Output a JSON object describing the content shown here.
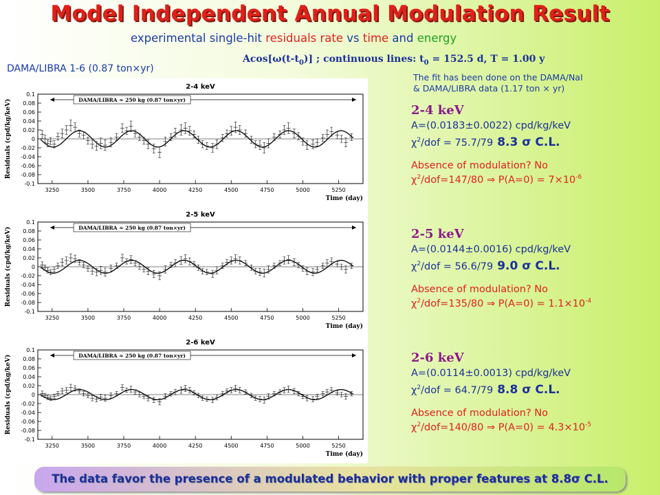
{
  "header": {
    "title": "Model Independent Annual Modulation Result",
    "subtitle_a": "experimental single-hit ",
    "subtitle_b": "residuals rate",
    "subtitle_c": " vs ",
    "subtitle_d": "time",
    "subtitle_e": " and ",
    "subtitle_f": "energy",
    "formula_a": "Acos[ω(t-t",
    "formula_sub1": "0",
    "formula_b": ")] ; continuous lines: t",
    "formula_sub2": "0",
    "formula_c": " = 152.5 d,  T = 1.00 y",
    "dataset_label": "DAMA/LIBRA 1-6 (0.87 ton×yr)",
    "fit_note_line1": "The fit has been done on the DAMA/NaI",
    "fit_note_line2": "& DAMA/LIBRA data (1.17 ton × yr)"
  },
  "results": [
    {
      "range": "2-4 keV",
      "amplitude": "A=(0.0183±0.0022) cpd/kg/keV",
      "chi_pre": "χ",
      "chi_sup": "2",
      "chi_post": "/dof = 75.7/79",
      "cl": "8.3 σ C.L.",
      "absence": "Absence of modulation? No",
      "chi0_pre": "χ",
      "chi0_sup1": "2",
      "chi0_post": "/dof=147/80 ⇒ P(A=0) = 7×10",
      "chi0_exp": "-6"
    },
    {
      "range": "2-5 keV",
      "amplitude": "A=(0.0144±0.0016) cpd/kg/keV",
      "chi_pre": "χ",
      "chi_sup": "2",
      "chi_post": "/dof = 56.6/79",
      "cl": "9.0 σ C.L.",
      "absence": "Absence of modulation? No",
      "chi0_pre": "χ",
      "chi0_sup1": "2",
      "chi0_post": "/dof=135/80 ⇒ P(A=0) = 1.1×10",
      "chi0_exp": "-4"
    },
    {
      "range": "2-6 keV",
      "amplitude": "A=(0.0114±0.0013) cpd/kg/keV",
      "chi_pre": "χ",
      "chi_sup": "2",
      "chi_post": "/dof = 64.7/79",
      "cl": "8.8 σ C.L.",
      "absence": "Absence of modulation? No",
      "chi0_pre": "χ",
      "chi0_sup1": "2",
      "chi0_post": "/dof=140/80 ⇒ P(A=0) = 4.3×10",
      "chi0_exp": "-5"
    }
  ],
  "banner": {
    "text": "The data favor the presence of a modulated behavior with proper features at 8.8σ C.L."
  },
  "chart_data": [
    {
      "type": "scatter",
      "title": "2-4 keV",
      "annotation": "DAMA/LIBRA ≈ 250 kg   (0.87 ton×yr)",
      "xlabel": "Time (day)",
      "ylabel": "Residuals (cpd/kg/keV)",
      "xlim": [
        3150,
        5420
      ],
      "ylim": [
        -0.1,
        0.1
      ],
      "xticks": [
        3250,
        3500,
        3750,
        4000,
        4250,
        4500,
        4750,
        5000,
        5250
      ],
      "yticks": [
        -0.1,
        -0.08,
        -0.06,
        -0.04,
        -0.02,
        0,
        0.02,
        0.04,
        0.06,
        0.08,
        0.1
      ],
      "grid": false,
      "fit": {
        "amplitude": 0.0183,
        "t0": 152.5,
        "period": 365.25
      },
      "series": [
        {
          "x": [
            3180,
            3200,
            3220,
            3240,
            3265,
            3290,
            3320,
            3350,
            3380,
            3410,
            3440,
            3470,
            3500,
            3530,
            3560,
            3590,
            3620,
            3660,
            3700,
            3740,
            3770,
            3800,
            3830,
            3860,
            3890,
            3920,
            3960,
            4000,
            4040,
            4080,
            4110,
            4150,
            4180,
            4210,
            4240,
            4270,
            4300,
            4330,
            4370,
            4400,
            4440,
            4470,
            4500,
            4530,
            4560,
            4600,
            4640,
            4670,
            4700,
            4730,
            4760,
            4800,
            4840,
            4870,
            4900,
            4940,
            4970,
            5000,
            5030,
            5070,
            5100,
            5140,
            5170,
            5200,
            5240,
            5270,
            5300,
            5340
          ],
          "y": [
            0.01,
            0.0,
            -0.01,
            -0.005,
            -0.012,
            0.005,
            0.012,
            0.02,
            0.03,
            0.026,
            0.012,
            0.008,
            -0.004,
            -0.012,
            -0.016,
            -0.01,
            -0.014,
            -0.008,
            0.004,
            0.024,
            0.018,
            0.028,
            0.012,
            0.004,
            -0.004,
            -0.012,
            -0.022,
            -0.03,
            -0.006,
            0.004,
            0.014,
            0.02,
            0.024,
            0.018,
            0.01,
            -0.002,
            -0.012,
            -0.016,
            -0.02,
            -0.012,
            0.002,
            0.012,
            0.018,
            0.026,
            0.02,
            0.012,
            -0.002,
            -0.012,
            -0.014,
            -0.02,
            -0.01,
            0.004,
            0.01,
            0.02,
            0.024,
            0.012,
            0.006,
            -0.006,
            -0.014,
            -0.012,
            -0.008,
            0.002,
            0.01,
            0.016,
            0.008,
            0.0,
            -0.008,
            0.004
          ],
          "err": [
            0.009,
            0.008,
            0.008,
            0.008,
            0.008,
            0.008,
            0.01,
            0.01,
            0.012,
            0.01,
            0.008,
            0.008,
            0.008,
            0.009,
            0.01,
            0.012,
            0.012,
            0.01,
            0.008,
            0.01,
            0.008,
            0.012,
            0.008,
            0.008,
            0.008,
            0.01,
            0.01,
            0.012,
            0.01,
            0.008,
            0.01,
            0.012,
            0.012,
            0.01,
            0.008,
            0.008,
            0.008,
            0.008,
            0.01,
            0.01,
            0.008,
            0.008,
            0.01,
            0.012,
            0.01,
            0.008,
            0.008,
            0.008,
            0.01,
            0.012,
            0.01,
            0.008,
            0.008,
            0.01,
            0.012,
            0.01,
            0.008,
            0.008,
            0.01,
            0.01,
            0.008,
            0.008,
            0.01,
            0.01,
            0.008,
            0.008,
            0.01,
            0.008
          ]
        }
      ]
    },
    {
      "type": "scatter",
      "title": "2-5 keV",
      "annotation": "DAMA/LIBRA ≈ 250 kg   (0.87 ton×yr)",
      "xlabel": "Time (day)",
      "ylabel": "Residuals (cpd/kg/keV)",
      "xlim": [
        3150,
        5420
      ],
      "ylim": [
        -0.1,
        0.1
      ],
      "xticks": [
        3250,
        3500,
        3750,
        4000,
        4250,
        4500,
        4750,
        5000,
        5250
      ],
      "yticks": [
        -0.1,
        -0.08,
        -0.06,
        -0.04,
        -0.02,
        0,
        0.02,
        0.04,
        0.06,
        0.08,
        0.1
      ],
      "grid": false,
      "fit": {
        "amplitude": 0.0144,
        "t0": 152.5,
        "period": 365.25
      },
      "series": [
        {
          "x": [
            3180,
            3200,
            3220,
            3240,
            3265,
            3290,
            3320,
            3350,
            3380,
            3410,
            3440,
            3470,
            3500,
            3530,
            3560,
            3590,
            3620,
            3660,
            3700,
            3740,
            3770,
            3800,
            3830,
            3860,
            3890,
            3920,
            3960,
            4000,
            4040,
            4080,
            4110,
            4150,
            4180,
            4210,
            4240,
            4270,
            4300,
            4330,
            4370,
            4400,
            4440,
            4470,
            4500,
            4530,
            4560,
            4600,
            4640,
            4670,
            4700,
            4730,
            4760,
            4800,
            4840,
            4870,
            4900,
            4940,
            4970,
            5000,
            5030,
            5070,
            5100,
            5140,
            5170,
            5200,
            5240,
            5270,
            5300,
            5340
          ],
          "y": [
            0.004,
            -0.002,
            -0.008,
            -0.012,
            -0.006,
            0.002,
            0.01,
            0.014,
            0.02,
            0.018,
            0.01,
            0.004,
            -0.004,
            -0.01,
            -0.012,
            -0.008,
            -0.012,
            -0.004,
            0.002,
            0.02,
            0.012,
            0.016,
            0.008,
            0.0,
            -0.006,
            -0.01,
            -0.016,
            -0.02,
            -0.006,
            0.004,
            0.008,
            0.014,
            0.018,
            0.012,
            0.006,
            -0.002,
            -0.01,
            -0.012,
            -0.016,
            -0.008,
            0.002,
            0.01,
            0.014,
            0.018,
            0.014,
            0.008,
            -0.002,
            -0.01,
            -0.012,
            -0.014,
            -0.006,
            0.002,
            0.008,
            0.014,
            0.016,
            0.01,
            0.004,
            -0.004,
            -0.01,
            -0.012,
            -0.006,
            0.002,
            0.008,
            0.012,
            0.006,
            0.0,
            -0.006,
            0.002
          ],
          "err": [
            0.007,
            0.006,
            0.006,
            0.006,
            0.006,
            0.006,
            0.008,
            0.008,
            0.009,
            0.008,
            0.006,
            0.006,
            0.006,
            0.007,
            0.008,
            0.009,
            0.009,
            0.008,
            0.006,
            0.008,
            0.006,
            0.009,
            0.006,
            0.006,
            0.006,
            0.008,
            0.008,
            0.009,
            0.008,
            0.006,
            0.008,
            0.009,
            0.009,
            0.008,
            0.006,
            0.006,
            0.006,
            0.006,
            0.008,
            0.008,
            0.006,
            0.006,
            0.008,
            0.009,
            0.008,
            0.006,
            0.006,
            0.006,
            0.008,
            0.009,
            0.008,
            0.006,
            0.006,
            0.008,
            0.009,
            0.008,
            0.006,
            0.006,
            0.008,
            0.008,
            0.006,
            0.006,
            0.008,
            0.008,
            0.006,
            0.006,
            0.008,
            0.006
          ]
        }
      ]
    },
    {
      "type": "scatter",
      "title": "2-6 keV",
      "annotation": "DAMA/LIBRA ≈ 250 kg   (0.87 ton×yr)",
      "xlabel": "Time (day)",
      "ylabel": "Residuals (cpd/kg/keV)",
      "xlim": [
        3150,
        5420
      ],
      "ylim": [
        -0.1,
        0.1
      ],
      "xticks": [
        3250,
        3500,
        3750,
        4000,
        4250,
        4500,
        4750,
        5000,
        5250
      ],
      "yticks": [
        -0.1,
        -0.08,
        -0.06,
        -0.04,
        -0.02,
        0,
        0.02,
        0.04,
        0.06,
        0.08,
        0.1
      ],
      "grid": false,
      "fit": {
        "amplitude": 0.0114,
        "t0": 152.5,
        "period": 365.25
      },
      "series": [
        {
          "x": [
            3180,
            3200,
            3220,
            3240,
            3265,
            3290,
            3320,
            3350,
            3380,
            3410,
            3440,
            3470,
            3500,
            3530,
            3560,
            3590,
            3620,
            3660,
            3700,
            3740,
            3770,
            3800,
            3830,
            3860,
            3890,
            3920,
            3960,
            4000,
            4040,
            4080,
            4110,
            4150,
            4180,
            4210,
            4240,
            4270,
            4300,
            4330,
            4370,
            4400,
            4440,
            4470,
            4500,
            4530,
            4560,
            4600,
            4640,
            4670,
            4700,
            4730,
            4760,
            4800,
            4840,
            4870,
            4900,
            4940,
            4970,
            5000,
            5030,
            5070,
            5100,
            5140,
            5170,
            5200,
            5240,
            5270,
            5300,
            5340
          ],
          "y": [
            0.002,
            -0.002,
            -0.006,
            -0.008,
            -0.004,
            0.002,
            0.008,
            0.01,
            0.016,
            0.014,
            0.008,
            0.002,
            -0.002,
            -0.008,
            -0.01,
            -0.006,
            -0.008,
            -0.002,
            0.002,
            0.016,
            0.01,
            0.012,
            0.006,
            0.0,
            -0.004,
            -0.008,
            -0.012,
            -0.016,
            -0.004,
            0.002,
            0.006,
            0.01,
            0.014,
            0.01,
            0.004,
            -0.002,
            -0.008,
            -0.01,
            -0.012,
            -0.006,
            0.002,
            0.008,
            0.01,
            0.014,
            0.01,
            0.006,
            -0.002,
            -0.008,
            -0.01,
            -0.012,
            -0.004,
            0.002,
            0.006,
            0.01,
            0.012,
            0.008,
            0.002,
            -0.004,
            -0.008,
            -0.01,
            -0.004,
            0.002,
            0.006,
            0.01,
            0.004,
            0.0,
            -0.004,
            0.002
          ],
          "err": [
            0.006,
            0.005,
            0.005,
            0.005,
            0.005,
            0.005,
            0.006,
            0.006,
            0.007,
            0.006,
            0.005,
            0.005,
            0.005,
            0.006,
            0.006,
            0.007,
            0.007,
            0.006,
            0.005,
            0.006,
            0.005,
            0.007,
            0.005,
            0.005,
            0.005,
            0.006,
            0.006,
            0.007,
            0.006,
            0.005,
            0.006,
            0.007,
            0.007,
            0.006,
            0.005,
            0.005,
            0.005,
            0.005,
            0.006,
            0.006,
            0.005,
            0.005,
            0.006,
            0.007,
            0.006,
            0.005,
            0.005,
            0.005,
            0.006,
            0.007,
            0.006,
            0.005,
            0.005,
            0.006,
            0.007,
            0.006,
            0.005,
            0.005,
            0.006,
            0.006,
            0.005,
            0.005,
            0.006,
            0.006,
            0.005,
            0.005,
            0.006,
            0.005
          ]
        }
      ]
    }
  ]
}
